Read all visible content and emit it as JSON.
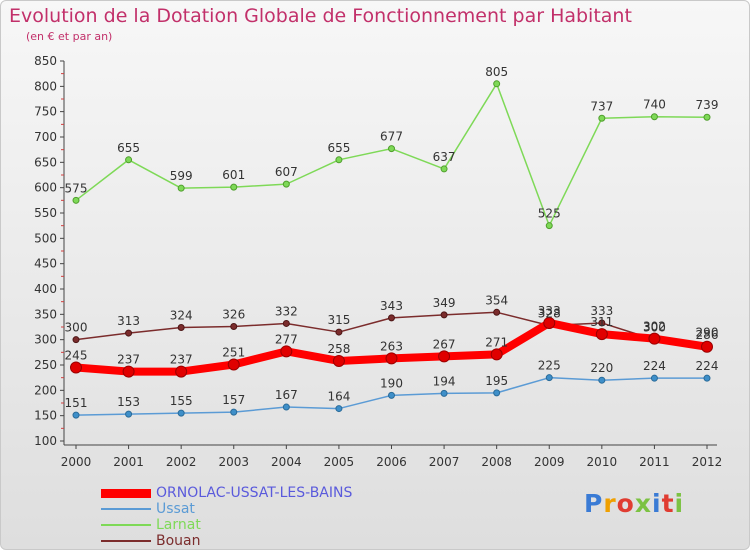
{
  "title": "Evolution de la Dotation Globale de Fonctionnement par Habitant",
  "subtitle": "(en € et par an)",
  "logo_text": "Proxiti",
  "chart_data": {
    "type": "line",
    "title": "Evolution de la Dotation Globale de Fonctionnement par Habitant",
    "subtitle": "(en € et par an)",
    "xlabel": "",
    "ylabel": "",
    "x": [
      "2000",
      "2001",
      "2002",
      "2003",
      "2004",
      "2005",
      "2006",
      "2007",
      "2008",
      "2009",
      "2010",
      "2011",
      "2012"
    ],
    "ylim": [
      100,
      850
    ],
    "yticks": [
      100,
      150,
      200,
      250,
      300,
      350,
      400,
      450,
      500,
      550,
      600,
      650,
      700,
      750,
      800,
      850
    ],
    "grid": false,
    "legend_position": "bottom-left",
    "series": [
      {
        "name": "ORNOLAC-USSAT-LES-BAINS",
        "color": "#ff0000",
        "values": [
          245,
          237,
          237,
          251,
          277,
          258,
          263,
          267,
          271,
          333,
          311,
          302,
          286
        ]
      },
      {
        "name": "Ussat",
        "color": "#5b9bd5",
        "values": [
          151,
          153,
          155,
          157,
          167,
          164,
          190,
          194,
          195,
          225,
          220,
          224,
          224
        ]
      },
      {
        "name": "Larnat",
        "color": "#7ed957",
        "values": [
          575,
          655,
          599,
          601,
          607,
          655,
          677,
          637,
          805,
          525,
          737,
          740,
          739
        ]
      },
      {
        "name": "Bouan",
        "color": "#7b2c2c",
        "values": [
          300,
          313,
          324,
          326,
          332,
          315,
          343,
          349,
          354,
          328,
          333,
          300,
          290
        ]
      }
    ]
  }
}
